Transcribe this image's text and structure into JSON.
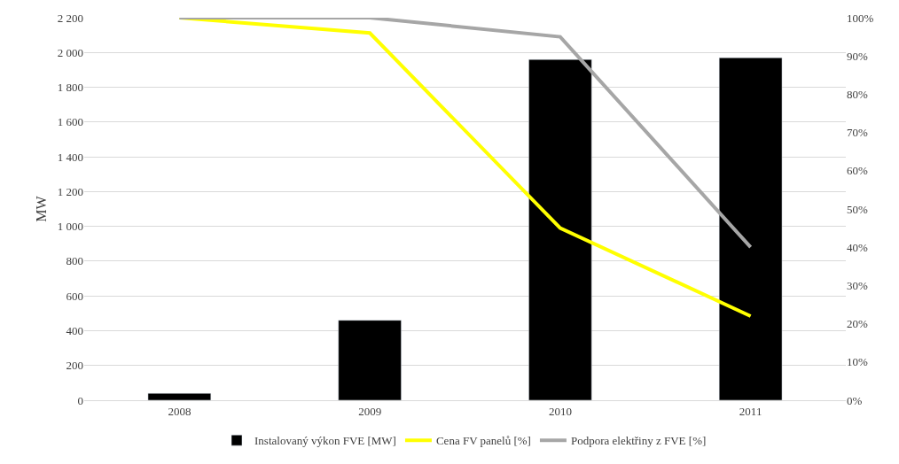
{
  "chart_data": {
    "type": "bar",
    "ylabel": "MW",
    "categories": [
      "2008",
      "2009",
      "2010",
      "2011"
    ],
    "series": [
      {
        "name": "Instalovaný výkon FVE [MW]",
        "color": "#000000",
        "values": [
          40,
          460,
          1960,
          1970
        ]
      },
      {
        "name": "Cena FV panelů [%]",
        "type": "line",
        "axis": "y2",
        "color": "#ffff00",
        "values": [
          100,
          96,
          45,
          22
        ]
      },
      {
        "name": "Podpora elektřiny z FVE [%]",
        "type": "line",
        "axis": "y2",
        "color": "#a6a6a6",
        "values": [
          100,
          100,
          95,
          40
        ]
      }
    ],
    "ylim": [
      0,
      2200
    ],
    "yticks": [
      0,
      200,
      400,
      600,
      800,
      {
        "value": 1000,
        "label": "1 000"
      },
      {
        "value": 1200,
        "label": "1 200"
      },
      {
        "value": 1400,
        "label": "1 400"
      },
      {
        "value": 1600,
        "label": "1 600"
      },
      {
        "value": 1800,
        "label": "1 800"
      },
      {
        "value": 2000,
        "label": "2 000"
      },
      {
        "value": 2200,
        "label": "2 200"
      }
    ],
    "y2lim": [
      0,
      100
    ],
    "y2ticks": [
      {
        "value": 0,
        "label": "0%"
      },
      {
        "value": 10,
        "label": "10%"
      },
      {
        "value": 20,
        "label": "20%"
      },
      {
        "value": 30,
        "label": "30%"
      },
      {
        "value": 40,
        "label": "40%"
      },
      {
        "value": 50,
        "label": "50%"
      },
      {
        "value": 60,
        "label": "60%"
      },
      {
        "value": 70,
        "label": "70%"
      },
      {
        "value": 80,
        "label": "80%"
      },
      {
        "value": 90,
        "label": "90%"
      },
      {
        "value": 100,
        "label": "100%"
      }
    ],
    "grid": "y",
    "legend": "bottom",
    "marker": "none",
    "line_style": "solid"
  }
}
